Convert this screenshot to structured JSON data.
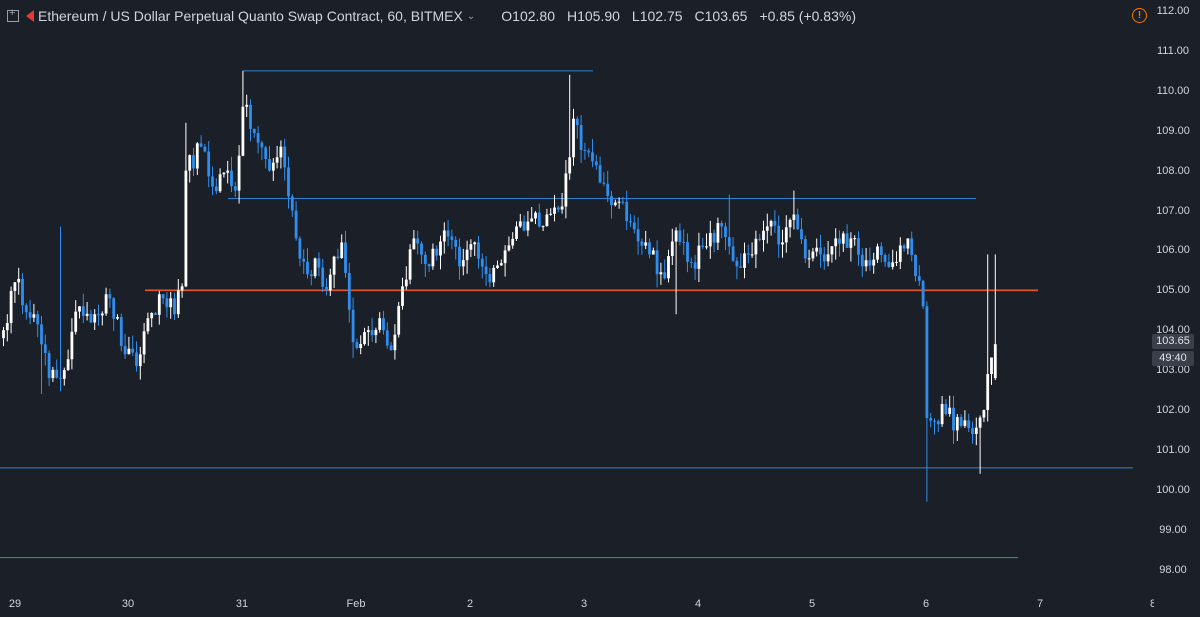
{
  "header": {
    "title": "Ethereum / US Dollar Perpetual Quanto Swap Contract, 60, BITMEX",
    "open": "O102.80",
    "high": "H105.90",
    "low": "L102.75",
    "close": "C103.65",
    "change": "+0.85 (+0.83%)",
    "warning_glyph": "!",
    "expand_icon": "expand-icon",
    "logo_icon": "bitmex-logo-icon",
    "chevron_icon": "chevron-down-icon"
  },
  "price_axis": {
    "labels": [
      "112.00",
      "111.00",
      "110.00",
      "109.00",
      "108.00",
      "107.00",
      "106.00",
      "105.00",
      "104.00",
      "103.00",
      "102.00",
      "101.00",
      "100.00",
      "99.00",
      "98.00"
    ],
    "last_price": "103.65",
    "countdown": "49:40"
  },
  "time_axis": {
    "labels": [
      "29",
      "30",
      "31",
      "Feb",
      "2",
      "3",
      "4",
      "5",
      "6",
      "7",
      "8"
    ]
  },
  "colors": {
    "background": "#1b1f27",
    "up_candle": "#ffffff",
    "down_candle": "#2f8ff0",
    "horizontal_line": "#2f82d0",
    "orange_level": "#e8572a",
    "green_level": "#26a65b",
    "warning": "#f57c00"
  },
  "chart_data": {
    "type": "candlestick",
    "symbol": "Ethereum / US Dollar Perpetual Quanto Swap Contract",
    "interval": "60",
    "exchange": "BITMEX",
    "ylim": [
      97.6,
      112.2
    ],
    "x_start": "Jan 28 20:00",
    "grid": false,
    "levels": [
      {
        "price": 110.5,
        "from": "Jan 31",
        "to": "Feb 3",
        "color": "blue"
      },
      {
        "price": 107.3,
        "from": "Jan 31",
        "to": "Feb 6",
        "color": "blue"
      },
      {
        "price": 105.0,
        "from": "Jan 30",
        "to": "Feb 6",
        "color": "orange"
      },
      {
        "price": 100.55,
        "from": "Jan 28",
        "to": "Feb 7",
        "color": "blue"
      },
      {
        "price": 98.3,
        "from": "Jan 28",
        "to": "Feb 7",
        "color": "green"
      }
    ],
    "anchors": [
      [
        0,
        104.0
      ],
      [
        3,
        105.2
      ],
      [
        8,
        104.4
      ],
      [
        12,
        102.8
      ],
      [
        16,
        103.0
      ],
      [
        20,
        104.6
      ],
      [
        24,
        104.4
      ],
      [
        28,
        104.8
      ],
      [
        32,
        103.4
      ],
      [
        35,
        103.1
      ],
      [
        38,
        104.3
      ],
      [
        42,
        104.8
      ],
      [
        45,
        104.4
      ],
      [
        47,
        105.1
      ],
      [
        48,
        108.0
      ],
      [
        52,
        108.6
      ],
      [
        55,
        107.6
      ],
      [
        59,
        108.0
      ],
      [
        61,
        107.5
      ],
      [
        63,
        109.6
      ],
      [
        67,
        108.7
      ],
      [
        70,
        108.0
      ],
      [
        73,
        108.6
      ],
      [
        77,
        106.3
      ],
      [
        80,
        105.4
      ],
      [
        82,
        105.8
      ],
      [
        85,
        105.0
      ],
      [
        89,
        106.2
      ],
      [
        92,
        103.7
      ],
      [
        96,
        104.0
      ],
      [
        99,
        104.3
      ],
      [
        102,
        103.5
      ],
      [
        105,
        105.1
      ],
      [
        108,
        106.3
      ],
      [
        112,
        105.6
      ],
      [
        116,
        106.5
      ],
      [
        120,
        105.6
      ],
      [
        124,
        106.2
      ],
      [
        128,
        105.2
      ],
      [
        132,
        106.0
      ],
      [
        135,
        106.6
      ],
      [
        139,
        106.8
      ],
      [
        143,
        106.9
      ],
      [
        147,
        107.1
      ],
      [
        150,
        109.3
      ],
      [
        153,
        108.5
      ],
      [
        157,
        107.7
      ],
      [
        161,
        107.2
      ],
      [
        165,
        106.7
      ],
      [
        169,
        106.2
      ],
      [
        174,
        105.3
      ],
      [
        177,
        106.5
      ],
      [
        181,
        105.7
      ],
      [
        185,
        106.1
      ],
      [
        189,
        106.6
      ],
      [
        191,
        106.1
      ],
      [
        193,
        105.6
      ],
      [
        197,
        105.9
      ],
      [
        201,
        106.6
      ],
      [
        205,
        106.2
      ],
      [
        208,
        106.9
      ],
      [
        211,
        105.8
      ],
      [
        215,
        105.9
      ],
      [
        219,
        106.3
      ],
      [
        223,
        106.3
      ],
      [
        226,
        105.6
      ],
      [
        230,
        106.1
      ],
      [
        234,
        105.7
      ],
      [
        238,
        106.3
      ],
      [
        242,
        104.6
      ],
      [
        243,
        101.8
      ],
      [
        248,
        101.9
      ],
      [
        252,
        101.6
      ],
      [
        255,
        101.4
      ],
      [
        258,
        102.0
      ],
      [
        259,
        102.9
      ],
      [
        261,
        103.65
      ]
    ],
    "wick_highs": [
      [
        15,
        106.6
      ],
      [
        48,
        109.2
      ],
      [
        63,
        110.5
      ],
      [
        149,
        110.4
      ],
      [
        191,
        107.4
      ],
      [
        208,
        107.5
      ],
      [
        259,
        105.9
      ]
    ],
    "wick_lows": [
      [
        10,
        102.4
      ],
      [
        92,
        103.3
      ],
      [
        177,
        104.4
      ],
      [
        243,
        99.7
      ],
      [
        257,
        100.4
      ]
    ],
    "last": {
      "open": 102.8,
      "high": 105.9,
      "low": 102.75,
      "close": 103.65
    }
  }
}
